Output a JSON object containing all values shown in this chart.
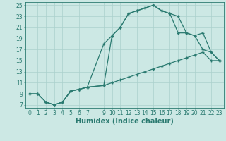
{
  "xlabel": "Humidex (Indice chaleur)",
  "bg_color": "#cce8e4",
  "grid_color": "#aad0cc",
  "line_color": "#2a7a70",
  "xlim": [
    -0.5,
    23.5
  ],
  "ylim": [
    6.5,
    25.5
  ],
  "xticks": [
    0,
    1,
    2,
    3,
    4,
    5,
    6,
    7,
    9,
    10,
    11,
    12,
    13,
    14,
    15,
    16,
    17,
    18,
    19,
    20,
    21,
    22,
    23
  ],
  "yticks": [
    7,
    9,
    11,
    13,
    15,
    17,
    19,
    21,
    23,
    25
  ],
  "line1_x": [
    0,
    1,
    2,
    3,
    4,
    5,
    6,
    7,
    9,
    10,
    11,
    12,
    13,
    14,
    15,
    16,
    17,
    18,
    19,
    20,
    21,
    22,
    23
  ],
  "line1_y": [
    9.0,
    9.0,
    7.5,
    7.0,
    7.5,
    9.5,
    9.8,
    10.2,
    10.5,
    11.0,
    11.5,
    12.0,
    12.5,
    13.0,
    13.5,
    14.0,
    14.5,
    15.0,
    15.5,
    16.0,
    16.5,
    15.0,
    15.0
  ],
  "line2_x": [
    0,
    1,
    2,
    3,
    4,
    5,
    6,
    7,
    9,
    10,
    11,
    12,
    13,
    14,
    15,
    16,
    17,
    18,
    19,
    20,
    21,
    22,
    23
  ],
  "line2_y": [
    9.0,
    9.0,
    7.5,
    7.0,
    7.5,
    9.5,
    9.8,
    10.2,
    10.5,
    19.5,
    21.0,
    23.5,
    24.0,
    24.5,
    25.0,
    24.0,
    23.5,
    23.0,
    20.0,
    19.5,
    20.0,
    16.5,
    15.0
  ],
  "line3_x": [
    2,
    3,
    4,
    5,
    6,
    7,
    9,
    10,
    11,
    12,
    13,
    14,
    15,
    16,
    17,
    18,
    19,
    20,
    21,
    22,
    23
  ],
  "line3_y": [
    7.5,
    7.0,
    7.5,
    9.5,
    9.8,
    10.2,
    18.0,
    19.5,
    21.0,
    23.5,
    24.0,
    24.5,
    25.0,
    24.0,
    23.5,
    20.0,
    20.0,
    19.5,
    17.0,
    16.5,
    15.0
  ],
  "xlabel_fontsize": 7,
  "tick_fontsize": 5.5
}
